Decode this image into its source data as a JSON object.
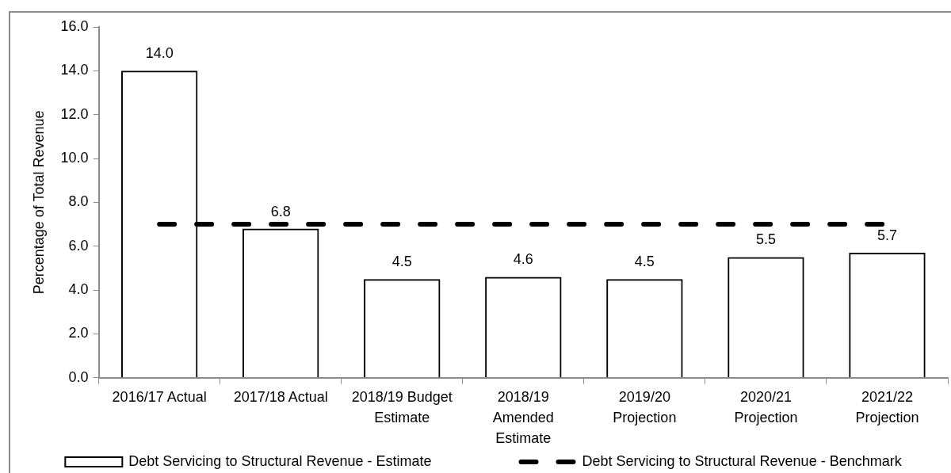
{
  "chart_data": {
    "type": "bar",
    "ylabel": "Percentage of Total Revenue",
    "categories": [
      "2016/17 Actual",
      "2017/18 Actual",
      "2018/19 Budget Estimate",
      "2018/19 Amended Estimate",
      "2019/20 Projection",
      "2020/21 Projection",
      "2021/22 Projection"
    ],
    "series": [
      {
        "name": "Debt Servicing to Structural Revenue - Estimate",
        "color": "#000000",
        "values": [
          14.0,
          6.8,
          4.5,
          4.6,
          4.5,
          5.5,
          5.7
        ],
        "value_labels": [
          "14.0",
          "6.8",
          "4.5",
          "4.6",
          "4.5",
          "5.5",
          "5.7"
        ]
      },
      {
        "name": "Debt Servicing to Structural Revenue - Benchmark",
        "type": "line",
        "color": "#000000",
        "values": [
          7.0,
          7.0,
          7.0,
          7.0,
          7.0,
          7.0,
          7.0
        ],
        "line_style": "dashed",
        "marker": "none"
      }
    ],
    "ylim": [
      0,
      16
    ],
    "yticks": [
      {
        "value": 0,
        "label": "0.0"
      },
      {
        "value": 2,
        "label": "2.0"
      },
      {
        "value": 4,
        "label": "4.0"
      },
      {
        "value": 6,
        "label": "6.0"
      },
      {
        "value": 8,
        "label": "8.0"
      },
      {
        "value": 10,
        "label": "10.0"
      },
      {
        "value": 12,
        "label": "12.0"
      },
      {
        "value": 14,
        "label": "14.0"
      },
      {
        "value": 16,
        "label": "16.0"
      }
    ],
    "grid": false,
    "legend": "bottom"
  }
}
